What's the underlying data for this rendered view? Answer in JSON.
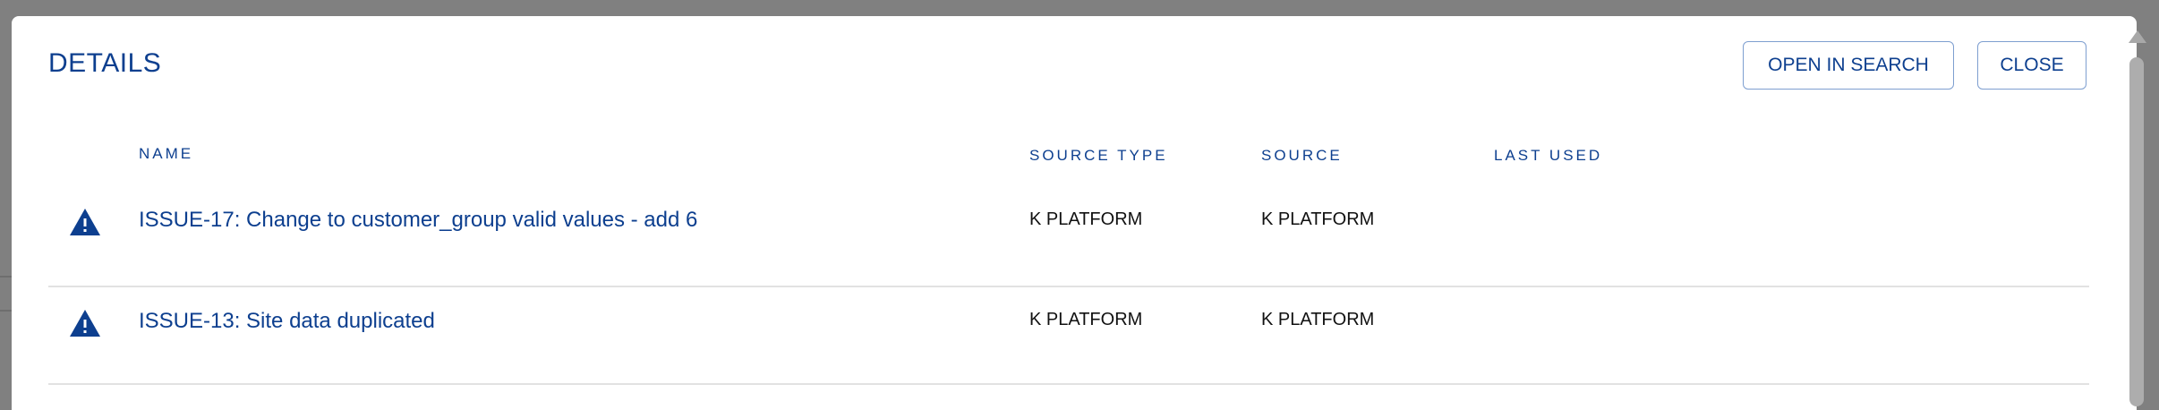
{
  "dialog": {
    "title": "DETAILS",
    "buttons": {
      "open_in_search": "OPEN IN SEARCH",
      "close": "CLOSE"
    },
    "columns": [
      "NAME",
      "SOURCE TYPE",
      "SOURCE",
      "LAST USED"
    ],
    "rows": [
      {
        "icon": "warning-icon",
        "name": "ISSUE-17: Change to customer_group valid values - add 6",
        "source_type": "K PLATFORM",
        "source": "K PLATFORM",
        "last_used": ""
      },
      {
        "icon": "warning-icon",
        "name": "ISSUE-13: Site data duplicated",
        "source_type": "K PLATFORM",
        "source": "K PLATFORM",
        "last_used": ""
      }
    ]
  },
  "colors": {
    "accent": "#0d3f8f",
    "overlay": "#808080",
    "button_border": "#7e9fd0"
  }
}
